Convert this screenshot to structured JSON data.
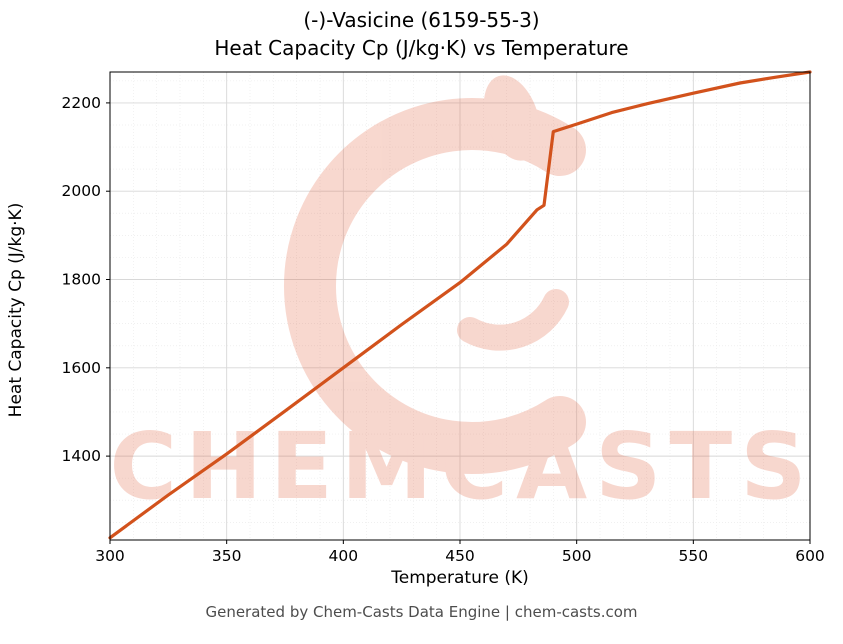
{
  "title_line1": "(-)-Vasicine (6159-55-3)",
  "title_line2": "Heat Capacity Cp (J/kg·K) vs Temperature",
  "footer": "Generated by Chem-Casts Data Engine | chem-casts.com",
  "watermark": {
    "text": "CHEMCASTS",
    "color": "#e05a38"
  },
  "chart_data": {
    "type": "line",
    "title": "(-)-Vasicine (6159-55-3) Heat Capacity Cp (J/kg·K) vs Temperature",
    "xlabel": "Temperature (K)",
    "ylabel": "Heat Capacity Cp (J/kg·K)",
    "xlim": [
      300,
      600
    ],
    "ylim": [
      1210,
      2270
    ],
    "x_ticks": [
      300,
      350,
      400,
      450,
      500,
      550,
      600
    ],
    "y_ticks": [
      1400,
      1600,
      1800,
      2000,
      2200
    ],
    "x_minor_step": 10,
    "y_minor_step": 50,
    "grid": true,
    "legend": "none",
    "line_color": "#d2521c",
    "series": [
      {
        "name": "Heat Capacity Cp",
        "x": [
          300,
          325,
          350,
          375,
          400,
          425,
          450,
          470,
          483,
          486,
          490,
          500,
          515,
          530,
          550,
          570,
          585,
          600
        ],
        "y": [
          1215,
          1312,
          1405,
          1502,
          1600,
          1698,
          1793,
          1880,
          1958,
          1968,
          2135,
          2152,
          2178,
          2198,
          2222,
          2245,
          2258,
          2270
        ]
      }
    ]
  }
}
